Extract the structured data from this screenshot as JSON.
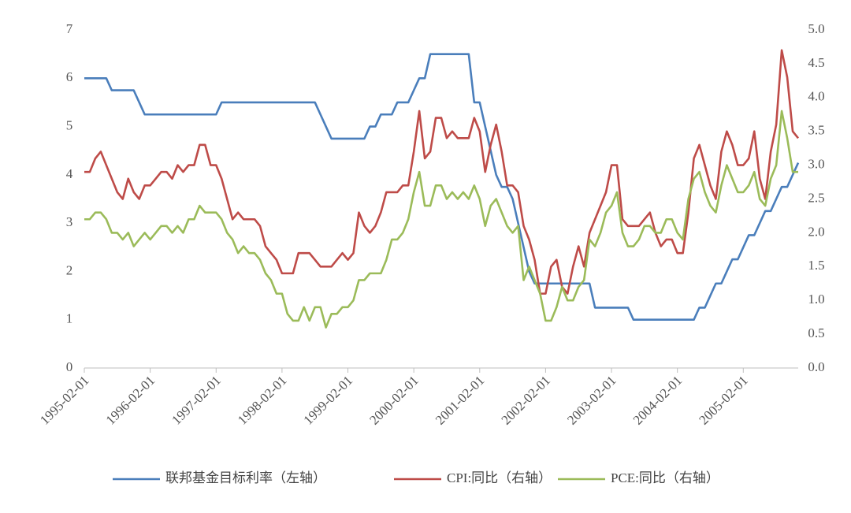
{
  "chart_data": {
    "type": "line",
    "categories": [
      "1995-02-01",
      null,
      null,
      null,
      null,
      null,
      null,
      null,
      null,
      null,
      null,
      null,
      "1996-02-01",
      null,
      null,
      null,
      null,
      null,
      null,
      null,
      null,
      null,
      null,
      null,
      "1997-02-01",
      null,
      null,
      null,
      null,
      null,
      null,
      null,
      null,
      null,
      null,
      null,
      "1998-02-01",
      null,
      null,
      null,
      null,
      null,
      null,
      null,
      null,
      null,
      null,
      null,
      "1999-02-01",
      null,
      null,
      null,
      null,
      null,
      null,
      null,
      null,
      null,
      null,
      null,
      "2000-02-01",
      null,
      null,
      null,
      null,
      null,
      null,
      null,
      null,
      null,
      null,
      null,
      "2001-02-01",
      null,
      null,
      null,
      null,
      null,
      null,
      null,
      null,
      null,
      null,
      null,
      "2002-02-01",
      null,
      null,
      null,
      null,
      null,
      null,
      null,
      null,
      null,
      null,
      null,
      "2003-02-01",
      null,
      null,
      null,
      null,
      null,
      null,
      null,
      null,
      null,
      null,
      null,
      "2004-02-01",
      null,
      null,
      null,
      null,
      null,
      null,
      null,
      null,
      null,
      null,
      null,
      "2005-02-01",
      null,
      null,
      null,
      null,
      null,
      null,
      null,
      null,
      null,
      null
    ],
    "ylim": [
      0,
      7
    ],
    "yticks": [
      0,
      1,
      2,
      3,
      4,
      5,
      6,
      7
    ],
    "y2lim": [
      0,
      5
    ],
    "y2ticks": [
      {
        "value": 0,
        "label": "0.0"
      },
      0.5,
      {
        "value": 1,
        "label": "1.0"
      },
      1.5,
      {
        "value": 2,
        "label": "2.0"
      },
      2.5,
      {
        "value": 3,
        "label": "3.0"
      },
      3.5,
      {
        "value": 4,
        "label": "4.0"
      },
      4.5,
      {
        "value": 5,
        "label": "5.0"
      }
    ],
    "series": [
      {
        "name": "联邦基金目标利率（左轴）",
        "color": "#4a7ebb",
        "values": [
          6,
          6,
          6,
          6,
          6,
          5.75,
          5.75,
          5.75,
          5.75,
          5.75,
          5.5,
          5.25,
          5.25,
          5.25,
          5.25,
          5.25,
          5.25,
          5.25,
          5.25,
          5.25,
          5.25,
          5.25,
          5.25,
          5.25,
          5.25,
          5.5,
          5.5,
          5.5,
          5.5,
          5.5,
          5.5,
          5.5,
          5.5,
          5.5,
          5.5,
          5.5,
          5.5,
          5.5,
          5.5,
          5.5,
          5.5,
          5.5,
          5.5,
          5.25,
          5,
          4.75,
          4.75,
          4.75,
          4.75,
          4.75,
          4.75,
          4.75,
          5,
          5,
          5.25,
          5.25,
          5.25,
          5.5,
          5.5,
          5.5,
          5.75,
          6,
          6,
          6.5,
          6.5,
          6.5,
          6.5,
          6.5,
          6.5,
          6.5,
          6.5,
          5.5,
          5.5,
          5,
          4.5,
          4,
          3.75,
          3.75,
          3.5,
          3,
          2.5,
          2,
          1.75,
          1.75,
          1.75,
          1.75,
          1.75,
          1.75,
          1.75,
          1.75,
          1.75,
          1.75,
          1.75,
          1.25,
          1.25,
          1.25,
          1.25,
          1.25,
          1.25,
          1.25,
          1,
          1,
          1,
          1,
          1,
          1,
          1,
          1,
          1,
          1,
          1,
          1,
          1.25,
          1.25,
          1.5,
          1.75,
          1.75,
          2,
          2.25,
          2.25,
          2.5,
          2.75,
          2.75,
          3,
          3.25,
          3.25,
          3.5,
          3.75,
          3.75,
          4,
          4.25
        ]
      },
      {
        "name": "CPI:同比（右轴）",
        "color": "#be4b48",
        "axis": "y2",
        "values": [
          2.9,
          2.9,
          3.1,
          3.2,
          3.0,
          2.8,
          2.6,
          2.5,
          2.8,
          2.6,
          2.5,
          2.7,
          2.7,
          2.8,
          2.9,
          2.9,
          2.8,
          3.0,
          2.9,
          3.0,
          3.0,
          3.3,
          3.3,
          3.0,
          3.0,
          2.8,
          2.5,
          2.2,
          2.3,
          2.2,
          2.2,
          2.2,
          2.1,
          1.8,
          1.7,
          1.6,
          1.4,
          1.4,
          1.4,
          1.7,
          1.7,
          1.7,
          1.6,
          1.5,
          1.5,
          1.5,
          1.6,
          1.7,
          1.6,
          1.7,
          2.3,
          2.1,
          2.0,
          2.1,
          2.3,
          2.6,
          2.6,
          2.6,
          2.7,
          2.7,
          3.2,
          3.8,
          3.1,
          3.2,
          3.7,
          3.7,
          3.4,
          3.5,
          3.4,
          3.4,
          3.4,
          3.7,
          3.5,
          2.9,
          3.3,
          3.6,
          3.2,
          2.7,
          2.7,
          2.6,
          2.1,
          1.9,
          1.6,
          1.1,
          1.1,
          1.5,
          1.6,
          1.2,
          1.1,
          1.5,
          1.8,
          1.5,
          2.0,
          2.2,
          2.4,
          2.6,
          3.0,
          3.0,
          2.2,
          2.1,
          2.1,
          2.1,
          2.2,
          2.3,
          2.0,
          1.8,
          1.9,
          1.9,
          1.7,
          1.7,
          2.3,
          3.1,
          3.3,
          3.0,
          2.7,
          2.5,
          3.2,
          3.5,
          3.3,
          3.0,
          3.0,
          3.1,
          3.5,
          2.8,
          2.5,
          3.2,
          3.6,
          4.7,
          4.3,
          3.5,
          3.4
        ]
      },
      {
        "name": "PCE:同比（右轴）",
        "color": "#9bbb59",
        "axis": "y2",
        "values": [
          2.2,
          2.2,
          2.3,
          2.3,
          2.2,
          2.0,
          2.0,
          1.9,
          2.0,
          1.8,
          1.9,
          2.0,
          1.9,
          2.0,
          2.1,
          2.1,
          2.0,
          2.1,
          2.0,
          2.2,
          2.2,
          2.4,
          2.3,
          2.3,
          2.3,
          2.2,
          2.0,
          1.9,
          1.7,
          1.8,
          1.7,
          1.7,
          1.6,
          1.4,
          1.3,
          1.1,
          1.1,
          0.8,
          0.7,
          0.7,
          0.9,
          0.7,
          0.9,
          0.9,
          0.6,
          0.8,
          0.8,
          0.9,
          0.9,
          1.0,
          1.3,
          1.3,
          1.4,
          1.4,
          1.4,
          1.6,
          1.9,
          1.9,
          2.0,
          2.2,
          2.6,
          2.9,
          2.4,
          2.4,
          2.7,
          2.7,
          2.5,
          2.6,
          2.5,
          2.6,
          2.5,
          2.7,
          2.5,
          2.1,
          2.4,
          2.5,
          2.3,
          2.1,
          2.0,
          2.1,
          1.3,
          1.5,
          1.3,
          1.1,
          0.7,
          0.7,
          0.9,
          1.2,
          1.0,
          1.0,
          1.2,
          1.3,
          1.9,
          1.8,
          2.0,
          2.3,
          2.4,
          2.6,
          2.0,
          1.8,
          1.8,
          1.9,
          2.1,
          2.1,
          2.0,
          2.0,
          2.2,
          2.2,
          2.0,
          1.9,
          2.5,
          2.8,
          2.9,
          2.6,
          2.4,
          2.3,
          2.7,
          3.0,
          2.8,
          2.6,
          2.6,
          2.7,
          2.9,
          2.5,
          2.4,
          2.8,
          3.0,
          3.8,
          3.4,
          2.9,
          2.9
        ]
      }
    ]
  }
}
